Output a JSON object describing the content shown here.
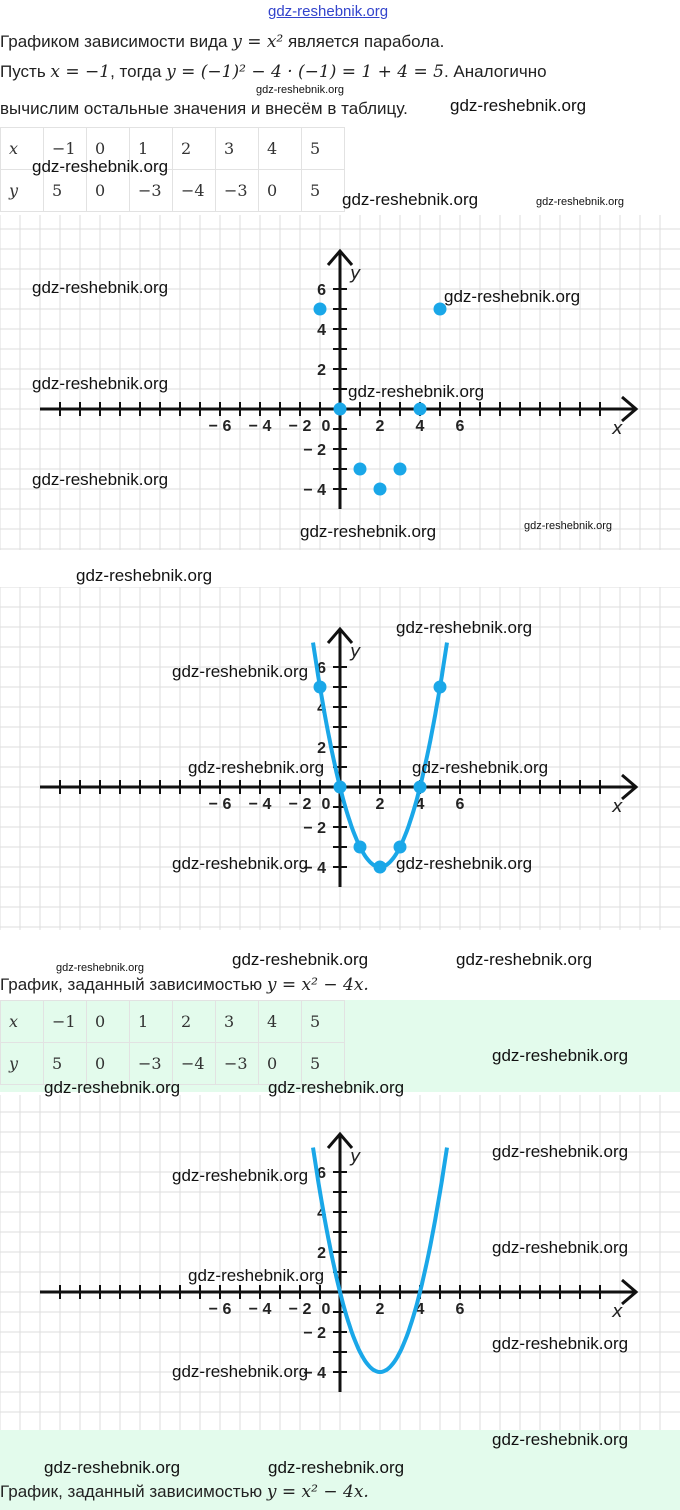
{
  "watermark": "gdz-reshebnik.org",
  "intro": {
    "line1_a": "Графиком зависимости вида ",
    "line1_formula": "y = x²",
    "line1_b": " является парабола.",
    "line2_a": "Пусть ",
    "line2_formula1": "x = −1",
    "line2_b": ", тогда ",
    "line2_formula2": "y = (−1)² − 4 · (−1) = 1 + 4 = 5",
    "line2_c": ". Аналогично",
    "line3": "вычислим остальные значения и внесём в таблицу."
  },
  "table": {
    "x_label": "x",
    "y_label": "y",
    "x": [
      "−1",
      "0",
      "1",
      "2",
      "3",
      "4",
      "5"
    ],
    "y": [
      "5",
      "0",
      "−3",
      "−4",
      "−3",
      "0",
      "5"
    ]
  },
  "caption": {
    "text": "График, заданный зависимостью ",
    "formula": "y = x² − 4x."
  },
  "colors": {
    "curve": "#1aa7e8",
    "axis": "#111111",
    "grid": "#dedede",
    "green": "#e3fbec"
  },
  "chart_data": [
    {
      "type": "scatter",
      "title": "",
      "xlabel": "x",
      "ylabel": "y",
      "x_ticks": [
        "-6",
        "-4",
        "-2",
        "0",
        "2",
        "4",
        "6"
      ],
      "y_ticks": [
        "6",
        "4",
        "2",
        "-2",
        "-4"
      ],
      "points": [
        [
          -1,
          5
        ],
        [
          0,
          0
        ],
        [
          1,
          -3
        ],
        [
          2,
          -4
        ],
        [
          3,
          -3
        ],
        [
          4,
          0
        ],
        [
          5,
          5
        ]
      ],
      "curve": false
    },
    {
      "type": "line",
      "title": "",
      "xlabel": "x",
      "ylabel": "y",
      "x_ticks": [
        "-6",
        "-4",
        "-2",
        "0",
        "2",
        "4",
        "6"
      ],
      "y_ticks": [
        "6",
        "4",
        "2",
        "-2",
        "-4"
      ],
      "points": [
        [
          -1,
          5
        ],
        [
          0,
          0
        ],
        [
          1,
          -3
        ],
        [
          2,
          -4
        ],
        [
          3,
          -3
        ],
        [
          4,
          0
        ],
        [
          5,
          5
        ]
      ],
      "curve": true,
      "function": "y = x^2 - 4x",
      "xlim": [
        -1.35,
        5.35
      ]
    },
    {
      "type": "line",
      "title": "",
      "xlabel": "x",
      "ylabel": "y",
      "x_ticks": [
        "-6",
        "-4",
        "-2",
        "0",
        "2",
        "4",
        "6"
      ],
      "y_ticks": [
        "6",
        "4",
        "2",
        "-2",
        "-4"
      ],
      "points": [],
      "curve": true,
      "function": "y = x^2 - 4x",
      "xlim": [
        -1.35,
        5.35
      ]
    }
  ]
}
